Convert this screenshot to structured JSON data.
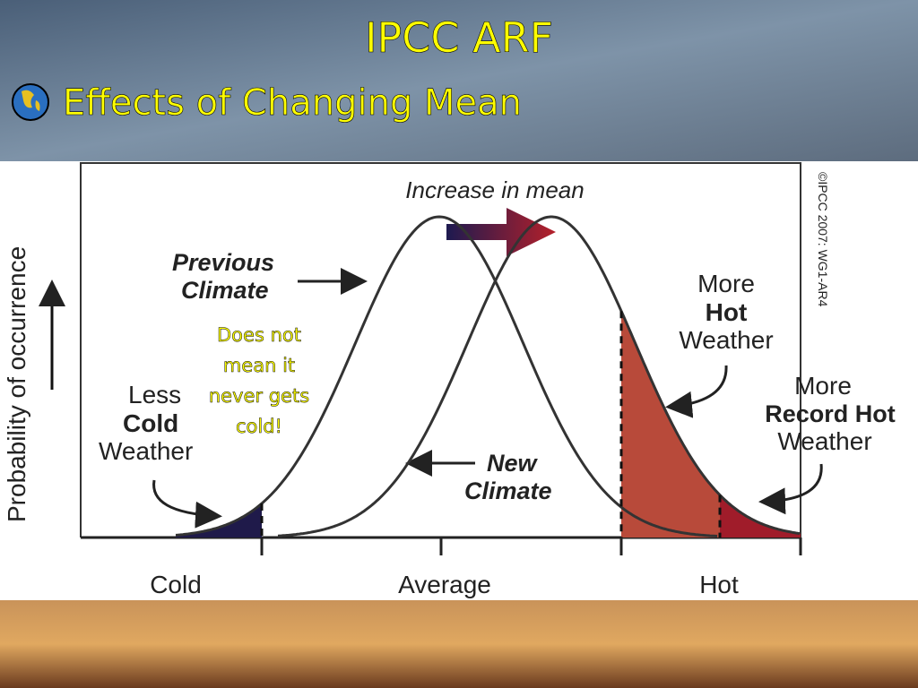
{
  "header": {
    "title": "IPCC ARF",
    "subtitle": "Effects of Changing Mean"
  },
  "diagram": {
    "y_axis_label": "Probability of occurrence",
    "annotation": "Increase in mean",
    "previous_climate": [
      "Previous",
      "Climate"
    ],
    "new_climate": [
      "New",
      "Climate"
    ],
    "less_cold": [
      "Less",
      "Cold",
      "Weather"
    ],
    "more_hot": [
      "More",
      "Hot",
      "Weather"
    ],
    "more_record_hot": [
      "More",
      "Record Hot",
      "Weather"
    ],
    "note": [
      "Does not",
      "mean it",
      "never gets",
      "cold!"
    ],
    "x_labels": [
      "Cold",
      "Average",
      "Hot"
    ],
    "credit": "©IPCC  2007: WG1-AR4"
  }
}
